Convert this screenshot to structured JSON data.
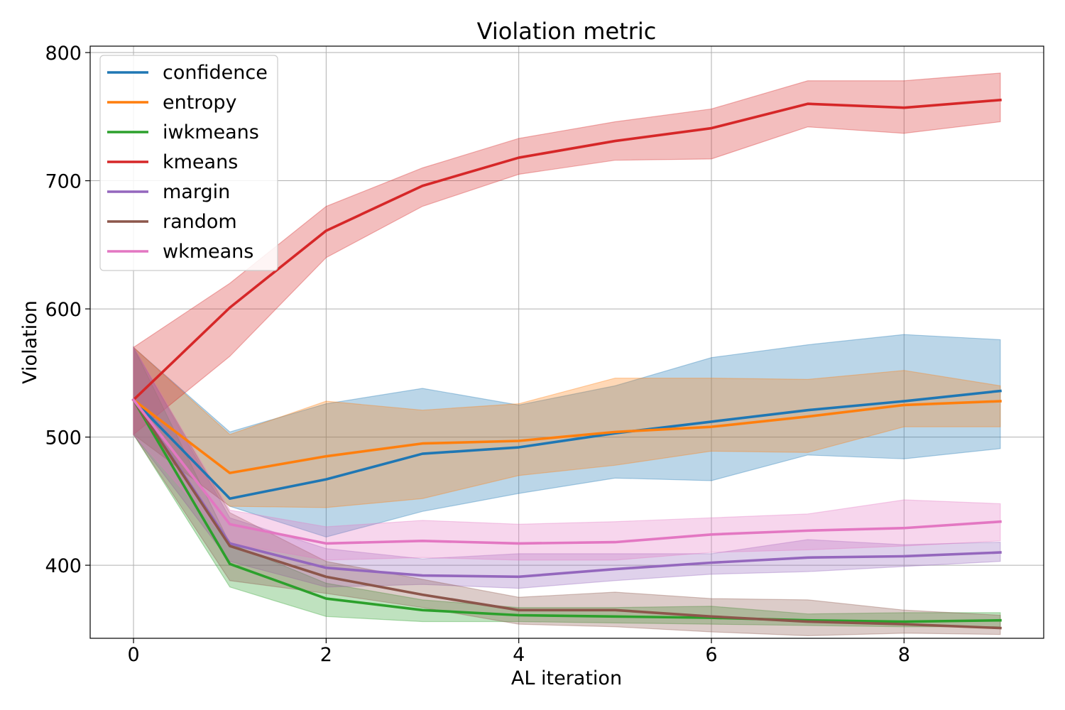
{
  "chart_data": {
    "type": "line",
    "title": "Violation metric",
    "xlabel": "AL iteration",
    "ylabel": "Violation",
    "x": [
      0,
      1,
      2,
      3,
      4,
      5,
      6,
      7,
      8,
      9
    ],
    "xlim": [
      -0.45,
      9.45
    ],
    "ylim": [
      343,
      805
    ],
    "xticks": [
      0,
      2,
      4,
      6,
      8
    ],
    "yticks": [
      400,
      500,
      600,
      700,
      800
    ],
    "grid": true,
    "legend_position": "top-left",
    "series": [
      {
        "name": "confidence",
        "color": "#1f77b4",
        "values": [
          529,
          452,
          467,
          487,
          492,
          503,
          512,
          521,
          528,
          536
        ],
        "lower": [
          502,
          446,
          422,
          442,
          456,
          468,
          466,
          486,
          483,
          491
        ],
        "upper": [
          570,
          504,
          526,
          538,
          525,
          540,
          562,
          572,
          580,
          576
        ]
      },
      {
        "name": "entropy",
        "color": "#ff7f0e",
        "values": [
          529,
          472,
          485,
          495,
          497,
          504,
          508,
          516,
          525,
          528
        ],
        "lower": [
          502,
          446,
          445,
          452,
          470,
          478,
          489,
          488,
          508,
          508
        ],
        "upper": [
          570,
          502,
          528,
          521,
          526,
          546,
          546,
          545,
          552,
          540
        ]
      },
      {
        "name": "iwkmeans",
        "color": "#2ca02c",
        "values": [
          529,
          401,
          374,
          365,
          361,
          360,
          359,
          357,
          356,
          357
        ],
        "lower": [
          502,
          383,
          360,
          356,
          356,
          355,
          354,
          353,
          352,
          352
        ],
        "upper": [
          570,
          417,
          386,
          373,
          367,
          367,
          368,
          362,
          363,
          363
        ]
      },
      {
        "name": "kmeans",
        "color": "#d62728",
        "values": [
          529,
          601,
          661,
          696,
          718,
          731,
          741,
          760,
          757,
          763
        ],
        "lower": [
          502,
          563,
          640,
          680,
          705,
          716,
          717,
          742,
          737,
          746
        ],
        "upper": [
          570,
          620,
          680,
          710,
          733,
          746,
          756,
          778,
          778,
          784
        ]
      },
      {
        "name": "margin",
        "color": "#9467bd",
        "values": [
          529,
          417,
          398,
          392,
          391,
          397,
          402,
          406,
          407,
          410
        ],
        "lower": [
          502,
          403,
          383,
          385,
          382,
          388,
          393,
          395,
          399,
          403
        ],
        "upper": [
          570,
          437,
          413,
          405,
          409,
          409,
          409,
          420,
          416,
          418
        ]
      },
      {
        "name": "random",
        "color": "#8c564b",
        "values": [
          529,
          415,
          391,
          377,
          365,
          365,
          360,
          356,
          354,
          351
        ],
        "lower": [
          502,
          388,
          378,
          367,
          354,
          352,
          348,
          345,
          347,
          346
        ],
        "upper": [
          570,
          441,
          403,
          389,
          375,
          379,
          374,
          373,
          365,
          361
        ]
      },
      {
        "name": "wkmeans",
        "color": "#e377c2",
        "values": [
          529,
          432,
          417,
          419,
          417,
          418,
          424,
          427,
          429,
          434
        ],
        "lower": [
          502,
          417,
          404,
          406,
          404,
          404,
          410,
          412,
          415,
          419
        ],
        "upper": [
          570,
          443,
          430,
          435,
          432,
          434,
          437,
          440,
          451,
          448
        ]
      }
    ]
  }
}
